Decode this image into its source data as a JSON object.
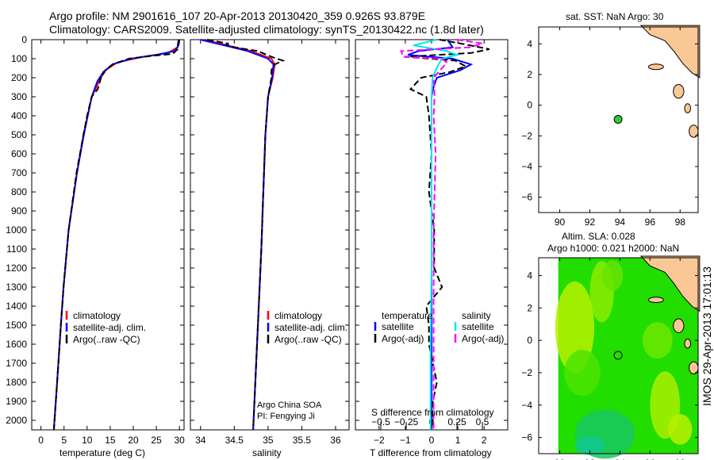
{
  "title": {
    "line1": "Argo profile: NM 2901616_107 20-Apr-2013 20130420_359 0.926S 93.879E",
    "line2": "Climatology: CARS2009. Satellite-adjusted climatology: synTS_20130422.nc (1.8d later)"
  },
  "footer_stamp": "IMOS 29-Apr-2013 17:01:13",
  "colors": {
    "climatology": "#ff0000",
    "satellite": "#0000ff",
    "argo": "#000000",
    "sal_satellite": "#00e5ee",
    "sal_argo": "#ff00ff",
    "land": "#f9c896",
    "float": "#33cc33"
  },
  "chart_data": [
    {
      "type": "line",
      "id": "temperature",
      "xlabel": "temperature (deg C)",
      "ylabel": "depth",
      "xlim": [
        -2,
        31
      ],
      "ylim": [
        2050,
        0
      ],
      "xticks": [
        0,
        5,
        10,
        15,
        20,
        25,
        30
      ],
      "yticks": [
        0,
        100,
        200,
        300,
        400,
        500,
        600,
        700,
        800,
        900,
        1000,
        1100,
        1200,
        1300,
        1400,
        1500,
        1600,
        1700,
        1800,
        1900,
        2000
      ],
      "legend": [
        "climatology",
        "satellite-adj. clim.",
        "Argo(..raw -QC)"
      ],
      "series": [
        {
          "name": "climatology",
          "color": "#ff0000",
          "depth": [
            0,
            40,
            70,
            90,
            120,
            160,
            200,
            300,
            500,
            700,
            1000,
            1300,
            1500,
            1800,
            2050
          ],
          "values": [
            29.8,
            29.6,
            27.5,
            22,
            16.5,
            14,
            13,
            11,
            9.2,
            7.8,
            6,
            4.9,
            4.3,
            3.5,
            2.8
          ]
        },
        {
          "name": "satellite-adj. clim.",
          "color": "#0000ff",
          "depth": [
            0,
            30,
            60,
            80,
            100,
            130,
            170,
            220,
            300,
            500,
            700,
            1000,
            1300,
            1500,
            1800,
            2050
          ],
          "values": [
            30,
            29.8,
            29,
            25,
            19.5,
            15.5,
            13.5,
            12.2,
            11,
            9.3,
            7.8,
            6,
            4.9,
            4.3,
            3.5,
            2.8
          ]
        },
        {
          "name": "Argo(..raw -QC)",
          "color": "#000000",
          "depth": [
            0,
            20,
            50,
            75,
            85,
            100,
            130,
            160,
            200,
            260,
            300,
            400,
            500,
            700,
            1000,
            1300,
            1500,
            1800,
            2050
          ],
          "values": [
            29.9,
            29.7,
            29.6,
            28.5,
            24,
            19,
            15.5,
            14,
            13,
            12.3,
            11,
            10,
            9.2,
            7.7,
            6,
            4.9,
            4.3,
            3.5,
            2.8
          ]
        }
      ]
    },
    {
      "type": "line",
      "id": "salinity",
      "xlabel": "salinity",
      "xlim": [
        33.85,
        36.2
      ],
      "ylim": [
        2050,
        0
      ],
      "xticks": [
        34,
        34.5,
        35,
        35.5,
        36
      ],
      "legend": [
        "climatology",
        "satellite-adj. clim.",
        "Argo(..raw -QC)"
      ],
      "annotation": [
        "Argo China SOA",
        "PI: Fengying Ji"
      ],
      "series": [
        {
          "name": "climatology",
          "color": "#ff0000",
          "depth": [
            0,
            30,
            60,
            100,
            130,
            200,
            300,
            500,
            800,
            1100,
            1500,
            2050
          ],
          "values": [
            34.05,
            34.4,
            34.75,
            35.05,
            35.1,
            35.07,
            35.0,
            34.96,
            34.93,
            34.9,
            34.85,
            34.78
          ]
        },
        {
          "name": "satellite-adj. clim.",
          "color": "#0000ff",
          "depth": [
            0,
            30,
            60,
            100,
            130,
            200,
            300,
            500,
            800,
            1100,
            1500,
            2050
          ],
          "values": [
            34.0,
            34.35,
            34.7,
            35.0,
            35.08,
            35.06,
            35.0,
            34.96,
            34.93,
            34.9,
            34.85,
            34.78
          ]
        },
        {
          "name": "Argo(..raw -QC)",
          "color": "#000000",
          "depth": [
            0,
            20,
            25,
            40,
            60,
            90,
            110,
            130,
            160,
            200,
            300,
            500,
            800,
            1100,
            1500,
            2050
          ],
          "values": [
            34.1,
            34.4,
            34.38,
            34.5,
            34.85,
            35.05,
            35.22,
            35.1,
            35.05,
            35.05,
            35.0,
            34.96,
            34.93,
            34.9,
            34.85,
            34.78
          ]
        }
      ]
    },
    {
      "type": "line",
      "id": "differences",
      "xlabel": "T difference from climatology",
      "x2label": "S difference from climatology",
      "xlim": [
        -2.9,
        2.9
      ],
      "x2lim": [
        -0.75,
        0.75
      ],
      "ylim": [
        2050,
        0
      ],
      "xticks": [
        -2,
        -1,
        0,
        1,
        2
      ],
      "x2ticks": [
        "-0.5",
        "-0.25",
        "0",
        "0.25",
        "0.5"
      ],
      "legend_titles": [
        "temperature",
        "salinity"
      ],
      "legend": [
        "satellite",
        "Argo(-adj)",
        "satellite",
        "Argo(-adj)"
      ],
      "series": [
        {
          "name": "T satellite",
          "axis": "T",
          "color": "#0000ff",
          "depth": [
            0,
            40,
            60,
            80,
            100,
            130,
            160,
            200,
            260,
            300,
            500,
            800,
            1200,
            1600,
            2050
          ],
          "values": [
            0.6,
            0.8,
            -0.5,
            -0.9,
            0.8,
            1.5,
            1.1,
            0.2,
            0.05,
            0,
            0,
            0,
            0,
            0,
            0
          ]
        },
        {
          "name": "T Argo(-adj)",
          "color": "#000000",
          "axis": "T",
          "depth": [
            0,
            20,
            50,
            70,
            90,
            110,
            140,
            170,
            200,
            260,
            300,
            400,
            600,
            800,
            1000,
            1200,
            1300,
            1400,
            1500,
            1600,
            1800,
            1900,
            2050
          ],
          "values": [
            0.3,
            1.1,
            2.2,
            1.5,
            -1.0,
            0.9,
            1.3,
            0.7,
            -0.4,
            -0.8,
            -0.2,
            -0.1,
            0,
            -0.1,
            0.1,
            0.1,
            0.4,
            -0.2,
            -0.1,
            -0.1,
            0.2,
            0.05,
            0
          ]
        },
        {
          "name": "S satellite",
          "axis": "S",
          "color": "#00e5ee",
          "depth": [
            0,
            30,
            60,
            80,
            100,
            150,
            200,
            300,
            500,
            800,
            1200,
            1600,
            2050
          ],
          "values": [
            0.05,
            -0.18,
            0.15,
            0.25,
            0.1,
            0.05,
            0.01,
            0,
            0,
            0,
            0,
            -0.01,
            -0.01
          ]
        },
        {
          "name": "S Argo(-adj)",
          "axis": "S",
          "color": "#ff00ff",
          "depth": [
            0,
            20,
            40,
            60,
            90,
            100,
            120,
            200,
            300,
            400,
            600,
            800,
            1000,
            1500,
            2050
          ],
          "values": [
            0.25,
            0.5,
            0.38,
            -0.3,
            -0.28,
            0.1,
            0.15,
            0.02,
            0.03,
            0.02,
            0.04,
            0.03,
            0.02,
            0.02,
            0.02
          ]
        }
      ]
    },
    {
      "type": "scatter",
      "id": "sst-map",
      "title": "sat. SST: NaN Argo: 30",
      "xlim": [
        88.6,
        99.2
      ],
      "ylim": [
        -7,
        5.1
      ],
      "xticks": [
        90,
        92,
        94,
        96,
        98
      ],
      "yticks": [
        4,
        2,
        0,
        -2,
        -4,
        -6
      ],
      "points": [
        {
          "lon": 93.879,
          "lat": -0.926
        }
      ]
    },
    {
      "type": "heatmap",
      "id": "sla-map",
      "title": [
        "Altim. SLA: 0.028",
        "Argo h1000: 0.021 h2000: NaN"
      ],
      "xlim": [
        88.6,
        99.2
      ],
      "ylim": [
        -7,
        5.1
      ],
      "xticks": [
        90,
        92,
        94,
        96,
        98
      ],
      "yticks": [
        4,
        2,
        0,
        -2,
        -4,
        -6
      ],
      "points": [
        {
          "lon": 93.879,
          "lat": -0.926
        }
      ]
    }
  ]
}
